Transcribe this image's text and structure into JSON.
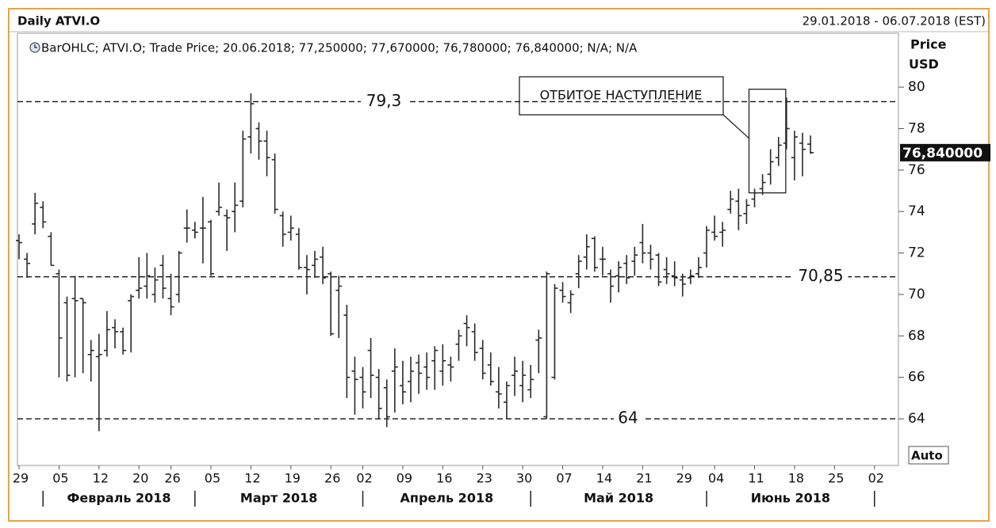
{
  "chart_data": {
    "type": "ohlc",
    "title": "Daily ATVI.O",
    "date_range": "29.01.2018 - 06.07.2018 (EST)",
    "legend_text": "BarOHLC; ATVI.O; Trade Price; 20.06.2018; 77,250000; 77,670000; 76,780000; 76,840000; N/A; N/A",
    "y_label": "Price",
    "y_unit": "USD",
    "auto_button": "Auto",
    "bar_color": "#2a2a2a",
    "categories": [
      "29.01.2018",
      "30.01.2018",
      "31.01.2018",
      "01.02.2018",
      "02.02.2018",
      "05.02.2018",
      "06.02.2018",
      "07.02.2018",
      "08.02.2018",
      "09.02.2018",
      "12.02.2018",
      "13.02.2018",
      "14.02.2018",
      "15.02.2018",
      "16.02.2018",
      "20.02.2018",
      "21.02.2018",
      "22.02.2018",
      "23.02.2018",
      "26.02.2018",
      "27.02.2018",
      "28.02.2018",
      "01.03.2018",
      "02.03.2018",
      "05.03.2018",
      "06.03.2018",
      "07.03.2018",
      "08.03.2018",
      "09.03.2018",
      "12.03.2018",
      "13.03.2018",
      "14.03.2018",
      "15.03.2018",
      "16.03.2018",
      "19.03.2018",
      "20.03.2018",
      "21.03.2018",
      "22.03.2018",
      "23.03.2018",
      "26.03.2018",
      "27.03.2018",
      "28.03.2018",
      "29.03.2018",
      "02.04.2018",
      "03.04.2018",
      "04.04.2018",
      "05.04.2018",
      "06.04.2018",
      "09.04.2018",
      "10.04.2018",
      "11.04.2018",
      "12.04.2018",
      "13.04.2018",
      "16.04.2018",
      "17.04.2018",
      "18.04.2018",
      "19.04.2018",
      "20.04.2018",
      "23.04.2018",
      "24.04.2018",
      "25.04.2018",
      "26.04.2018",
      "27.04.2018",
      "30.04.2018",
      "01.05.2018",
      "02.05.2018",
      "03.05.2018",
      "04.05.2018",
      "07.05.2018",
      "08.05.2018",
      "09.05.2018",
      "10.05.2018",
      "11.05.2018",
      "14.05.2018",
      "15.05.2018",
      "16.05.2018",
      "17.05.2018",
      "18.05.2018",
      "21.05.2018",
      "22.05.2018",
      "23.05.2018",
      "24.05.2018",
      "25.05.2018",
      "29.05.2018",
      "30.05.2018",
      "31.05.2018",
      "01.06.2018",
      "04.06.2018",
      "05.06.2018",
      "06.06.2018",
      "07.06.2018",
      "08.06.2018",
      "11.06.2018",
      "12.06.2018",
      "13.06.2018",
      "14.06.2018",
      "15.06.2018",
      "18.06.2018",
      "19.06.2018",
      "20.06.2018"
    ],
    "open": [
      72.6,
      71.7,
      73.4,
      74.2,
      72.8,
      71.0,
      69.6,
      69.8,
      69.8,
      67.1,
      67.0,
      67.3,
      68.4,
      68.2,
      69.7,
      70.2,
      70.4,
      70.0,
      71.4,
      69.8,
      70.0,
      73.2,
      73.1,
      73.2,
      73.5,
      74.0,
      73.8,
      74.0,
      74.5,
      77.6,
      78.0,
      77.4,
      76.5,
      73.8,
      73.0,
      72.9,
      71.3,
      71.4,
      71.8,
      71.0,
      70.2,
      69.0,
      66.3,
      66.0,
      67.3,
      66.0,
      65.5,
      66.3,
      65.6,
      65.8,
      66.7,
      66.5,
      66.8,
      66.3,
      66.6,
      67.6,
      68.6,
      68.2,
      67.4,
      66.6,
      65.3,
      64.8,
      66.1,
      65.6,
      65.4,
      67.8,
      64.1,
      66.0,
      70.2,
      69.6,
      71.0,
      71.8,
      72.7,
      71.7,
      71.0,
      70.9,
      71.5,
      71.6,
      72.5,
      72.0,
      71.9,
      71.2,
      70.9,
      70.7,
      70.8,
      71.0,
      72.0,
      73.0,
      73.0,
      74.1,
      74.5,
      73.9,
      74.6,
      75.1,
      75.8,
      76.6,
      77.3,
      76.6,
      77.3,
      77.25
    ],
    "high": [
      72.9,
      72.0,
      74.9,
      74.5,
      73.0,
      71.2,
      69.9,
      70.9,
      69.8,
      67.8,
      68.1,
      69.2,
      68.8,
      68.4,
      70.0,
      71.8,
      72.0,
      71.3,
      71.9,
      71.0,
      72.1,
      74.1,
      73.5,
      74.7,
      73.6,
      75.4,
      74.1,
      75.4,
      77.9,
      79.7,
      78.3,
      77.9,
      76.8,
      74.0,
      73.8,
      73.2,
      71.9,
      72.1,
      72.3,
      71.1,
      70.9,
      69.5,
      67.0,
      66.5,
      67.9,
      66.4,
      65.9,
      67.4,
      66.8,
      67.0,
      67.1,
      67.2,
      67.5,
      67.6,
      67.0,
      68.3,
      69.0,
      68.6,
      67.8,
      67.2,
      66.5,
      65.8,
      67.0,
      66.8,
      66.6,
      68.3,
      71.1,
      70.5,
      70.6,
      70.2,
      71.9,
      72.9,
      72.8,
      72.3,
      71.2,
      71.6,
      71.9,
      72.3,
      73.4,
      72.4,
      72.0,
      71.8,
      71.6,
      71.0,
      71.2,
      71.8,
      73.3,
      73.8,
      73.5,
      75.0,
      75.1,
      74.6,
      75.1,
      75.8,
      77.0,
      77.6,
      79.5,
      77.9,
      77.8,
      77.67
    ],
    "low": [
      71.7,
      70.8,
      72.9,
      73.2,
      71.4,
      66.0,
      65.8,
      66.0,
      66.2,
      65.8,
      63.4,
      67.0,
      67.4,
      67.1,
      67.2,
      69.8,
      69.8,
      69.6,
      69.8,
      69.0,
      69.6,
      72.5,
      72.7,
      71.5,
      70.9,
      73.8,
      72.1,
      73.0,
      74.2,
      76.8,
      76.5,
      75.7,
      73.9,
      72.3,
      72.6,
      71.2,
      70.0,
      70.8,
      70.5,
      68.0,
      67.9,
      65.0,
      64.2,
      64.5,
      65.0,
      64.0,
      63.6,
      64.3,
      64.7,
      64.8,
      65.2,
      65.4,
      65.4,
      65.6,
      65.8,
      66.8,
      67.5,
      66.8,
      65.9,
      65.6,
      64.5,
      64.0,
      65.1,
      64.8,
      65.0,
      66.2,
      64.0,
      65.9,
      69.6,
      69.1,
      70.3,
      71.2,
      71.1,
      70.9,
      69.6,
      70.1,
      70.5,
      70.9,
      71.5,
      71.2,
      70.4,
      70.5,
      70.4,
      69.9,
      70.5,
      70.8,
      71.3,
      72.6,
      72.3,
      73.9,
      73.1,
      73.4,
      74.2,
      74.8,
      75.3,
      76.2,
      77.0,
      75.5,
      75.7,
      76.78
    ],
    "close": [
      72.5,
      71.5,
      74.4,
      73.5,
      71.4,
      67.9,
      66.1,
      69.7,
      69.6,
      67.3,
      67.1,
      68.3,
      68.2,
      67.3,
      69.9,
      70.3,
      70.9,
      70.7,
      70.3,
      69.4,
      72.0,
      73.2,
      73.0,
      73.2,
      71.0,
      74.2,
      73.7,
      74.3,
      77.5,
      79.2,
      77.4,
      76.6,
      74.1,
      72.9,
      73.2,
      71.3,
      71.2,
      71.7,
      70.8,
      68.1,
      70.4,
      66.0,
      65.9,
      65.3,
      66.1,
      64.5,
      64.1,
      66.5,
      65.3,
      66.3,
      66.2,
      66.0,
      67.3,
      66.8,
      66.5,
      68.0,
      68.4,
      67.2,
      66.2,
      65.8,
      65.2,
      65.6,
      66.3,
      66.1,
      65.9,
      67.9,
      71.0,
      70.3,
      69.9,
      70.0,
      71.6,
      72.3,
      71.3,
      71.7,
      70.4,
      71.3,
      70.8,
      71.9,
      72.0,
      71.7,
      70.6,
      71.0,
      70.8,
      70.5,
      70.9,
      71.3,
      73.1,
      72.8,
      73.1,
      74.6,
      73.8,
      74.3,
      74.9,
      75.4,
      76.4,
      77.2,
      78.0,
      77.6,
      77.0,
      76.84
    ],
    "last_value_label": "76,840000",
    "xlim": [
      -0.2,
      110
    ],
    "xticks": [
      {
        "value": 0,
        "label": "29"
      },
      {
        "value": 5,
        "label": "05"
      },
      {
        "value": 10,
        "label": "12"
      },
      {
        "value": 15,
        "label": "20"
      },
      {
        "value": 19,
        "label": "26"
      },
      {
        "value": 24,
        "label": "05"
      },
      {
        "value": 29,
        "label": "12"
      },
      {
        "value": 34,
        "label": "19"
      },
      {
        "value": 39,
        "label": "26"
      },
      {
        "value": 43,
        "label": "02"
      },
      {
        "value": 48,
        "label": "09"
      },
      {
        "value": 53,
        "label": "16"
      },
      {
        "value": 58,
        "label": "23"
      },
      {
        "value": 63,
        "label": "30"
      },
      {
        "value": 68,
        "label": "07"
      },
      {
        "value": 73,
        "label": "14"
      },
      {
        "value": 78,
        "label": "21"
      },
      {
        "value": 83,
        "label": "29"
      },
      {
        "value": 87,
        "label": "04"
      },
      {
        "value": 92,
        "label": "11"
      },
      {
        "value": 97,
        "label": "18"
      },
      {
        "value": 102,
        "label": "25"
      },
      {
        "value": 107,
        "label": "02"
      }
    ],
    "x_groups": [
      {
        "label": "Февраль 2018",
        "start": 3,
        "end": 22
      },
      {
        "label": "Март 2018",
        "start": 22,
        "end": 43
      },
      {
        "label": "Апрель 2018",
        "start": 43,
        "end": 64
      },
      {
        "label": "Май 2018",
        "start": 64,
        "end": 86
      },
      {
        "label": "Июнь 2018",
        "start": 86,
        "end": 107
      }
    ],
    "ylim": [
      61.75,
      82.6
    ],
    "yticks": [
      64,
      66,
      68,
      70,
      72,
      74,
      76,
      78,
      80
    ],
    "grid": false,
    "levels": [
      {
        "value": 79.3,
        "label": "79,3"
      },
      {
        "value": 70.85,
        "label": "70,85"
      },
      {
        "value": 64,
        "label": "64"
      }
    ],
    "annotation": {
      "text": "ОТБИТОЕ НАСТУПЛЕНИЕ",
      "from": "11.06.2018",
      "to": "15.06.2018",
      "low": 74.9,
      "high": 79.9
    }
  }
}
